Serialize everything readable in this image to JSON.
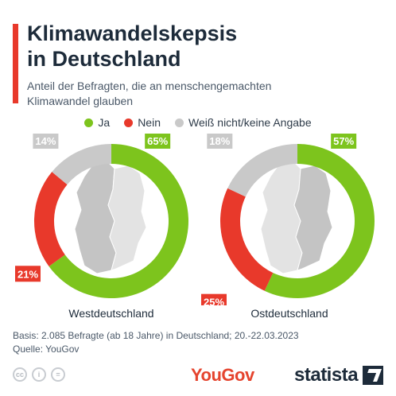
{
  "header": {
    "title_line1": "Klimawandelskepsis",
    "title_line2": "in Deutschland",
    "subtitle_line1": "Anteil der Befragten, die an menschengemachten",
    "subtitle_line2": "Klimawandel glauben"
  },
  "legend": [
    {
      "label": "Ja",
      "color": "#7dc41d"
    },
    {
      "label": "Nein",
      "color": "#e8392b"
    },
    {
      "label": "Weiß nicht/keine Angabe",
      "color": "#c9c9c9"
    }
  ],
  "chart_data": [
    {
      "type": "pie",
      "title": "Westdeutschland",
      "categories": [
        "Ja",
        "Nein",
        "Weiß nicht/keine Angabe"
      ],
      "values": [
        65,
        21,
        14
      ],
      "labels": [
        "65%",
        "21%",
        "14%"
      ],
      "colors": [
        "#7dc41d",
        "#e8392b",
        "#c9c9c9"
      ],
      "donut": true
    },
    {
      "type": "pie",
      "title": "Ostdeutschland",
      "categories": [
        "Ja",
        "Nein",
        "Weiß nicht/keine Angabe"
      ],
      "values": [
        57,
        25,
        18
      ],
      "labels": [
        "57%",
        "25%",
        "18%"
      ],
      "colors": [
        "#7dc41d",
        "#e8392b",
        "#c9c9c9"
      ],
      "donut": true
    }
  ],
  "footer": {
    "basis": "Basis: 2.085 Befragte (ab 18 Jahre) in Deutschland; 20.-22.03.2023",
    "source": "Quelle: YouGov"
  },
  "branding": {
    "yougov": "YouGov",
    "statista": "statista",
    "cc_icons": [
      "cc-icon",
      "person-icon",
      "equals-icon"
    ]
  }
}
